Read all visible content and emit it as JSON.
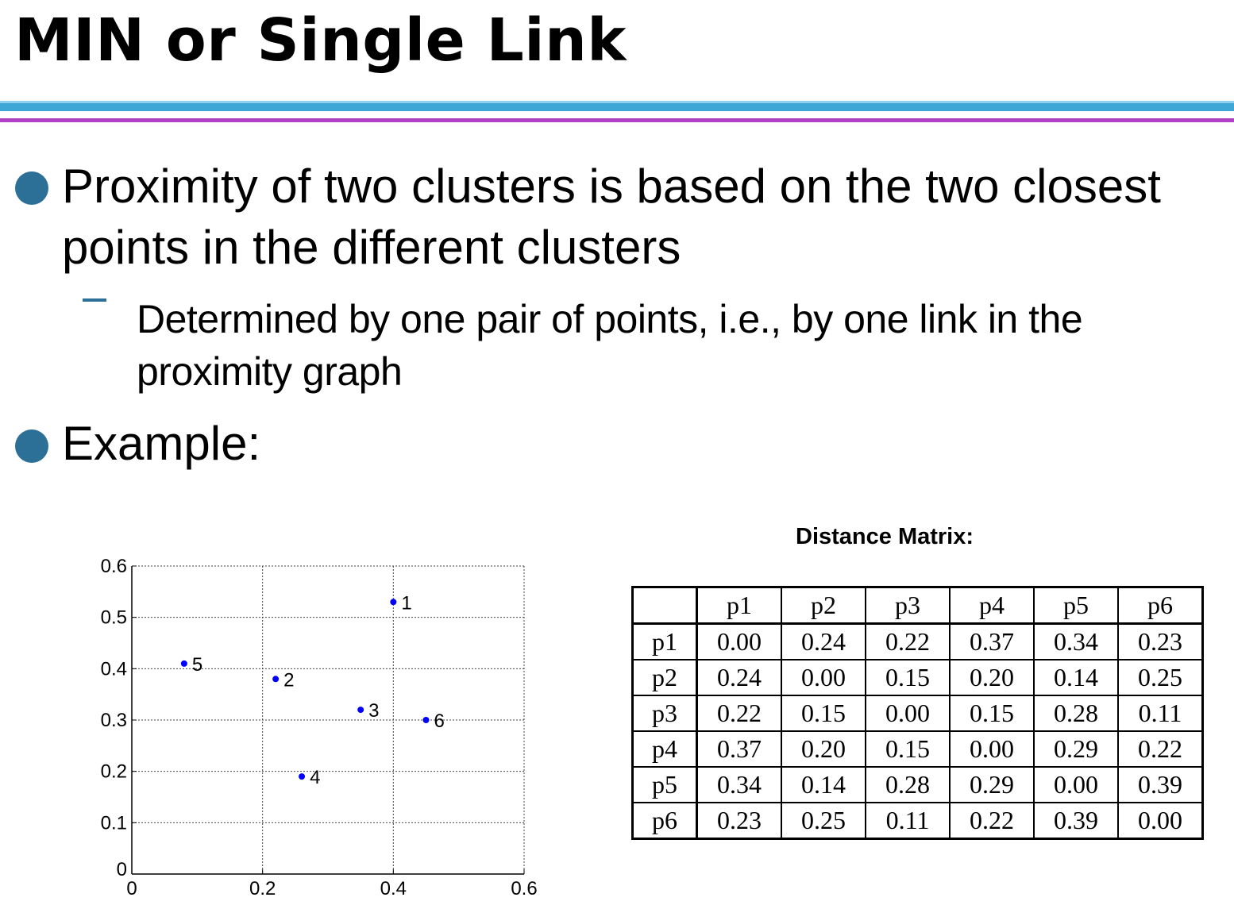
{
  "slide": {
    "title": "MIN or Single Link",
    "bullet1": "Proximity of two clusters is based on the two closest points in the different clusters",
    "sub1": "Determined by one pair of points, i.e., by one link in the proximity graph",
    "bullet2": "Example:",
    "matrix_title": "Distance Matrix:",
    "colors": {
      "accent_blue": "#3fa7d6",
      "accent_purple": "#b040c8",
      "bullet": "#2c6f97",
      "point": "#0000ff"
    }
  },
  "matrix": {
    "headers": [
      "p1",
      "p2",
      "p3",
      "p4",
      "p5",
      "p6"
    ],
    "rows": [
      {
        "label": "p1",
        "values": [
          "0.00",
          "0.24",
          "0.22",
          "0.37",
          "0.34",
          "0.23"
        ]
      },
      {
        "label": "p2",
        "values": [
          "0.24",
          "0.00",
          "0.15",
          "0.20",
          "0.14",
          "0.25"
        ]
      },
      {
        "label": "p3",
        "values": [
          "0.22",
          "0.15",
          "0.00",
          "0.15",
          "0.28",
          "0.11"
        ]
      },
      {
        "label": "p4",
        "values": [
          "0.37",
          "0.20",
          "0.15",
          "0.00",
          "0.29",
          "0.22"
        ]
      },
      {
        "label": "p5",
        "values": [
          "0.34",
          "0.14",
          "0.28",
          "0.29",
          "0.00",
          "0.39"
        ]
      },
      {
        "label": "p6",
        "values": [
          "0.23",
          "0.25",
          "0.11",
          "0.22",
          "0.39",
          "0.00"
        ]
      }
    ]
  },
  "chart_data": {
    "type": "scatter",
    "title": "",
    "xlabel": "",
    "ylabel": "",
    "xlim": [
      0,
      0.6
    ],
    "ylim": [
      0,
      0.6
    ],
    "xticks": [
      "0",
      "0.2",
      "0.4",
      "0.6"
    ],
    "yticks": [
      "0",
      "0.1",
      "0.2",
      "0.3",
      "0.4",
      "0.5",
      "0.6"
    ],
    "grid": true,
    "grid_style": "dotted",
    "points": [
      {
        "label": "1",
        "x": 0.4,
        "y": 0.53
      },
      {
        "label": "2",
        "x": 0.22,
        "y": 0.38
      },
      {
        "label": "3",
        "x": 0.35,
        "y": 0.32
      },
      {
        "label": "4",
        "x": 0.26,
        "y": 0.19
      },
      {
        "label": "5",
        "x": 0.08,
        "y": 0.41
      },
      {
        "label": "6",
        "x": 0.45,
        "y": 0.3
      }
    ]
  }
}
